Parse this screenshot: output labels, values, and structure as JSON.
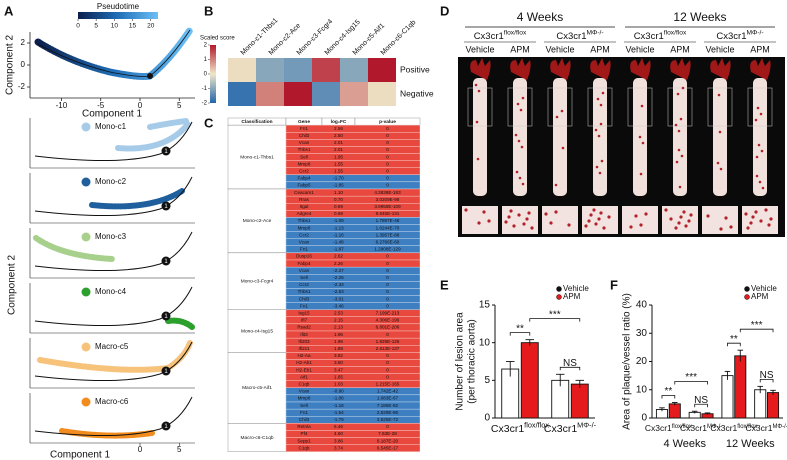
{
  "labels": [
    "A",
    "B",
    "C",
    "D",
    "E",
    "F"
  ],
  "panel_a": {
    "colorbar_title": "Pseudotime",
    "colorbar_ticks": [
      0,
      5,
      10,
      15,
      20
    ],
    "colorbar_lim": [
      0,
      22
    ],
    "colormap": [
      "#0b1f4d",
      "#1f6fb8",
      "#6cc0f5"
    ],
    "xlabel": "Component 1",
    "ylabel": "Component 2",
    "xlim": [
      -14,
      7
    ],
    "xticks": [
      -10,
      -5,
      0,
      5
    ],
    "ylim": [
      -3,
      3
    ],
    "yticks": [
      -2,
      0,
      2
    ],
    "bottom_xticks": [
      0,
      5
    ],
    "node_label": "1",
    "clusters": [
      {
        "name": "Mono-c1",
        "color": "#a6cbe8"
      },
      {
        "name": "Mono-c2",
        "color": "#1f5f9e"
      },
      {
        "name": "Mono-c3",
        "color": "#a8d08d"
      },
      {
        "name": "Mono-c4",
        "color": "#2ca02c"
      },
      {
        "name": "Macro-c5",
        "color": "#f7c27a"
      },
      {
        "name": "Macro-c6",
        "color": "#f28c1e"
      }
    ]
  },
  "panel_b": {
    "title": "Scaled score",
    "columns": [
      "Mono-c1-Thbs1",
      "Mono-c2-Ace",
      "Mono-c3-Fcgr4",
      "Mono-c4-Isg15",
      "Mono-c5-Aif1",
      "Mono-c6-C1qb"
    ],
    "rows": [
      "Positive",
      "Negative"
    ],
    "values": [
      [
        0.1,
        -1.0,
        -1.2,
        1.6,
        -1.0,
        2.2
      ],
      [
        -1.8,
        1.0,
        2.2,
        -1.4,
        0.7,
        0.1
      ]
    ],
    "lim": [
      -2,
      2
    ],
    "colorbar_ticks": [
      2,
      1,
      0,
      -1,
      -2
    ],
    "colormap": [
      "#2166ac",
      "#efe7c9",
      "#b2182b"
    ]
  },
  "table": {
    "headers": [
      "Classification",
      "Gene",
      "log₂FC",
      "p-value"
    ],
    "positive_color": "#e8483d",
    "negative_color": "#3e7fc2",
    "groups": [
      {
        "name": "Mono-c1-Thbs1",
        "rows": [
          [
            "Fn1",
            "2.56",
            "0"
          ],
          [
            "Chil3",
            "2.50",
            "0"
          ],
          [
            "Vcan",
            "2.01",
            "0"
          ],
          [
            "Thbs1",
            "2.01",
            "0"
          ],
          [
            "Sell",
            "1.95",
            "0"
          ],
          [
            "Mmp8",
            "1.55",
            "0"
          ],
          [
            "Ccr2",
            "1.55",
            "0"
          ],
          [
            "Fabp4",
            "-1.70",
            "0"
          ],
          [
            "Fabp5",
            "-1.85",
            "0"
          ]
        ]
      },
      {
        "name": "Mono-c2-Ace",
        "rows": [
          [
            "Ceacam1",
            "1.10",
            "4.3838E-183"
          ],
          [
            "Rras",
            "0.70",
            "3.0209E-98"
          ],
          [
            "Itgal",
            "0.69",
            "3.9958E-109"
          ],
          [
            "Adgre4",
            "0.69",
            "9.645E-131"
          ],
          [
            "Thbs1",
            "-1.09",
            "1.7897E-46"
          ],
          [
            "Mmp8",
            "-1.13",
            "1.0244E-70"
          ],
          [
            "Ccr2",
            "-1.16",
            "1.3957E-88"
          ],
          [
            "Vcan",
            "-1.48",
            "6.2766E-60"
          ],
          [
            "Fn1",
            "-1.87",
            "1.2908E-129"
          ]
        ]
      },
      {
        "name": "Mono-c3-Fcgr4",
        "rows": [
          [
            "Dusp16",
            "2.62",
            "0"
          ],
          [
            "Fabp4",
            "2.26",
            "0"
          ],
          [
            "Vcan",
            "-2.27",
            "0"
          ],
          [
            "Sell",
            "-2.25",
            "0"
          ],
          [
            "Ccr2",
            "-2.33",
            "0"
          ],
          [
            "Thbs1",
            "-2.53",
            "0"
          ],
          [
            "Chil3",
            "-3.01",
            "0"
          ],
          [
            "Fn1",
            "-3.46",
            "0"
          ]
        ]
      },
      {
        "name": "Mono-c4-Isg15",
        "rows": [
          [
            "Isg15",
            "2.53",
            "7.199E-213"
          ],
          [
            "Ifi7",
            "2.15",
            "4.306E-196"
          ],
          [
            "Rsad2",
            "2.13",
            "6.801E-206"
          ],
          [
            "Ifit3",
            "1.96",
            "0"
          ],
          [
            "Ifi203",
            "1.96",
            "1.929E-126"
          ],
          [
            "Ifi211",
            "1.88",
            "2.613E-137"
          ]
        ]
      },
      {
        "name": "Macro-c5-Aif1",
        "rows": [
          [
            "H2-Aa",
            "3.82",
            "0"
          ],
          [
            "H2-Ab1",
            "3.80",
            "0"
          ],
          [
            "H2-Eb1",
            "3.47",
            "0"
          ],
          [
            "Aif1",
            "1.65",
            "0"
          ],
          [
            "C1qb",
            "1.03",
            "1.215E-165"
          ],
          [
            "Vcan",
            "-0.90",
            "1.742E-42"
          ],
          [
            "Mmp8",
            "-1.06",
            "1.083E-67"
          ],
          [
            "Sell",
            "-1.16",
            "7.186E-92"
          ],
          [
            "Fn1",
            "-1.54",
            "2.629E-86"
          ],
          [
            "Chil3",
            "-1.79",
            "3.825E-72"
          ]
        ]
      },
      {
        "name": "Macro-c6-C1qb",
        "rows": [
          [
            "Retnla",
            "6.46",
            "0"
          ],
          [
            "Pf4",
            "4.60",
            "7.63E-28"
          ],
          [
            "Sepp1",
            "3.86",
            "6.187E-20"
          ],
          [
            "C1qb",
            "3.74",
            "6.545E-17"
          ]
        ]
      }
    ]
  },
  "panel_d": {
    "periods": [
      "4 Weeks",
      "12 Weeks"
    ],
    "genotypes": [
      {
        "label": "Cx3cr1",
        "sup": "flox/flox"
      },
      {
        "label": "Cx3cr1",
        "sup": "MΦ-/-"
      },
      {
        "label": "Cx3cr1",
        "sup": "flox/flox"
      },
      {
        "label": "Cx3cr1",
        "sup": "MΦ-/-"
      }
    ],
    "treatments": [
      "Vehicle",
      "APM",
      "Vehicle",
      "APM",
      "Vehicle",
      "APM",
      "Vehicle",
      "APM"
    ]
  },
  "chart_e": {
    "type": "bar",
    "ylabel": [
      "Number of lesion area",
      "(per thoracic aorta)"
    ],
    "ylim": [
      0,
      15
    ],
    "yticks": [
      0,
      5,
      10,
      15
    ],
    "legend": "upper right",
    "groups": [
      {
        "label": "Cx3cr1",
        "sup": "flox/flox"
      },
      {
        "label": "Cx3cr1",
        "sup": "MΦ-/-"
      }
    ],
    "series": [
      {
        "name": "Vehicle",
        "color": "#ffffff",
        "values": [
          6.5,
          5.0
        ],
        "errors": [
          1.0,
          0.8
        ]
      },
      {
        "name": "APM",
        "color": "#e41a1c",
        "values": [
          10.0,
          4.5
        ],
        "errors": [
          0.4,
          0.5
        ]
      }
    ],
    "comparisons": [
      {
        "label": "**",
        "from": [
          0,
          0
        ],
        "to": [
          0,
          1
        ]
      },
      {
        "label": "***",
        "from": [
          0,
          1
        ],
        "to": [
          1,
          1
        ]
      },
      {
        "label": "NS",
        "from": [
          1,
          0
        ],
        "to": [
          1,
          1
        ]
      }
    ]
  },
  "chart_f": {
    "type": "bar",
    "ylabel": [
      "Area of plaque/vessel ratio (%)"
    ],
    "ylim": [
      0,
      40
    ],
    "yticks": [
      0,
      10,
      20,
      30,
      40
    ],
    "legend": "upper right",
    "groups": [
      {
        "label": "Cx3cr1",
        "sup": "flox/flox"
      },
      {
        "label": "Cx3cr1",
        "sup": "MΦ-/-"
      },
      {
        "label": "Cx3cr1",
        "sup": "flox/flox"
      },
      {
        "label": "Cx3cr1",
        "sup": "MΦ-/-"
      }
    ],
    "periods": [
      "4 Weeks",
      "12 Weeks"
    ],
    "series": [
      {
        "name": "Vehicle",
        "color": "#ffffff",
        "values": [
          3.0,
          2.0,
          15.0,
          10.0
        ],
        "errors": [
          0.6,
          0.4,
          1.5,
          1.2
        ]
      },
      {
        "name": "APM",
        "color": "#e41a1c",
        "values": [
          5.0,
          1.5,
          22.0,
          9.0
        ],
        "errors": [
          0.5,
          0.3,
          2.0,
          0.8
        ]
      }
    ],
    "comparisons": [
      {
        "label": "**",
        "from": [
          0,
          0
        ],
        "to": [
          0,
          1
        ]
      },
      {
        "label": "NS",
        "from": [
          1,
          0
        ],
        "to": [
          1,
          1
        ]
      },
      {
        "label": "***",
        "from": [
          0,
          1
        ],
        "to": [
          1,
          1
        ]
      },
      {
        "label": "**",
        "from": [
          2,
          0
        ],
        "to": [
          2,
          1
        ]
      },
      {
        "label": "NS",
        "from": [
          3,
          0
        ],
        "to": [
          3,
          1
        ]
      },
      {
        "label": "***",
        "from": [
          2,
          1
        ],
        "to": [
          3,
          1
        ]
      }
    ]
  }
}
